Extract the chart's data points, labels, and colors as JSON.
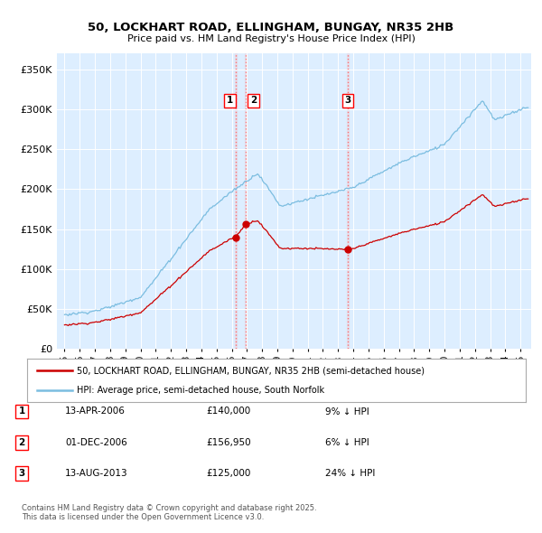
{
  "title": "50, LOCKHART ROAD, ELLINGHAM, BUNGAY, NR35 2HB",
  "subtitle": "Price paid vs. HM Land Registry's House Price Index (HPI)",
  "legend_line1": "50, LOCKHART ROAD, ELLINGHAM, BUNGAY, NR35 2HB (semi-detached house)",
  "legend_line2": "HPI: Average price, semi-detached house, South Norfolk",
  "footer": "Contains HM Land Registry data © Crown copyright and database right 2025.\nThis data is licensed under the Open Government Licence v3.0.",
  "sale_color": "#cc0000",
  "hpi_color": "#7bbde0",
  "background_color": "#ddeeff",
  "plot_bg_color": "#ddeeff",
  "sale_markers": [
    {
      "date_num": 2006.28,
      "price": 140000,
      "label": "1"
    },
    {
      "date_num": 2006.92,
      "price": 156950,
      "label": "2"
    },
    {
      "date_num": 2013.62,
      "price": 125000,
      "label": "3"
    }
  ],
  "vline_dates": [
    2006.28,
    2006.92,
    2013.62
  ],
  "table_rows": [
    {
      "num": "1",
      "date": "13-APR-2006",
      "price": "£140,000",
      "pct": "9% ↓ HPI"
    },
    {
      "num": "2",
      "date": "01-DEC-2006",
      "price": "£156,950",
      "pct": "6% ↓ HPI"
    },
    {
      "num": "3",
      "date": "13-AUG-2013",
      "price": "£125,000",
      "pct": "24% ↓ HPI"
    }
  ],
  "ylim": [
    0,
    370000
  ],
  "xlim_start": 1994.5,
  "xlim_end": 2025.7,
  "yticks": [
    0,
    50000,
    100000,
    150000,
    200000,
    250000,
    300000,
    350000
  ],
  "xtick_years": [
    1995,
    1996,
    1997,
    1998,
    1999,
    2000,
    2001,
    2002,
    2003,
    2004,
    2005,
    2006,
    2007,
    2008,
    2009,
    2010,
    2011,
    2012,
    2013,
    2014,
    2015,
    2016,
    2017,
    2018,
    2019,
    2020,
    2021,
    2022,
    2023,
    2024,
    2025
  ]
}
